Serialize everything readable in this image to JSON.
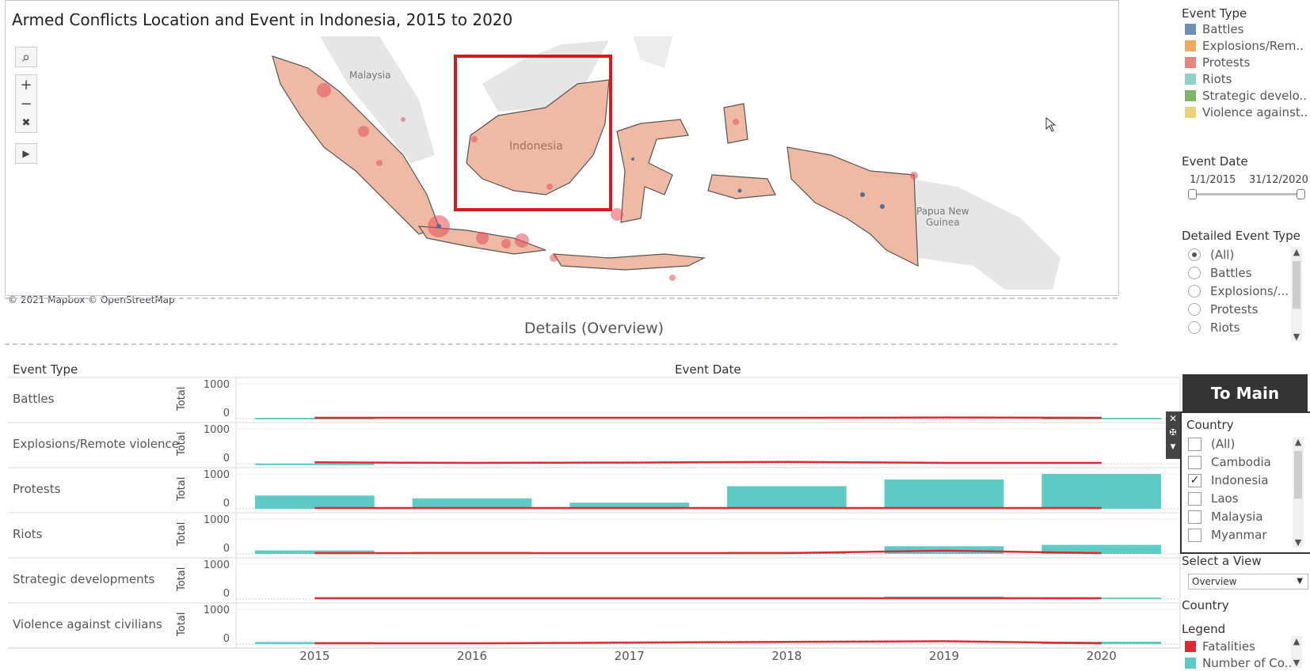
{
  "map": {
    "title": "Armed Conflicts Location and Event in Indonesia, 2015 to 2020",
    "labels": {
      "malaysia": "Malaysia",
      "indonesia": "Indonesia",
      "png": "Papua New Guinea"
    },
    "attribution": "© 2021 Mapbox © OpenStreetMap",
    "controls": [
      "search-icon",
      "zoom-in-icon",
      "zoom-out-icon",
      "pin-reset-icon",
      "play-icon"
    ]
  },
  "details": {
    "title": "Details (Overview)"
  },
  "chart_headers": {
    "event_type": "Event Type",
    "event_date": "Event Date"
  },
  "chart_data": {
    "type": "bar",
    "x": [
      "2015",
      "2016",
      "2017",
      "2018",
      "2019",
      "2020"
    ],
    "ylim": [
      0,
      1000
    ],
    "yticks": [
      "1000",
      "0"
    ],
    "ylabel": "Total",
    "series": [
      {
        "name": "Battles",
        "bars": [
          22,
          0,
          0,
          0,
          0,
          22
        ],
        "fatalities": [
          0,
          0,
          0,
          0,
          10,
          0
        ]
      },
      {
        "name": "Explosions/Remote violence",
        "bars": [
          5,
          0,
          0,
          0,
          0,
          0
        ],
        "fatalities": [
          15,
          0,
          10,
          30,
          0,
          0
        ]
      },
      {
        "name": "Protests",
        "bars": [
          380,
          300,
          175,
          650,
          840,
          1000
        ],
        "fatalities": [
          0,
          0,
          0,
          0,
          0,
          0
        ]
      },
      {
        "name": "Riots",
        "bars": [
          100,
          60,
          0,
          60,
          220,
          260
        ],
        "fatalities": [
          0,
          0,
          0,
          0,
          70,
          0
        ]
      },
      {
        "name": "Strategic developments",
        "bars": [
          0,
          0,
          0,
          0,
          70,
          40
        ],
        "fatalities": [
          0,
          0,
          0,
          0,
          0,
          0
        ]
      },
      {
        "name": "Violence against civilians",
        "bars": [
          60,
          0,
          0,
          0,
          0,
          70
        ],
        "fatalities": [
          0,
          0,
          20,
          40,
          60,
          0
        ]
      }
    ]
  },
  "sidebar": {
    "event_type_title": "Event Type",
    "event_types": [
      {
        "label": "Battles",
        "color": "#6f8fb4"
      },
      {
        "label": "Explosions/Rem..",
        "color": "#f0a960"
      },
      {
        "label": "Protests",
        "color": "#e48582"
      },
      {
        "label": "Riots",
        "color": "#8fd0c8"
      },
      {
        "label": "Strategic develo..",
        "color": "#7fb56a"
      },
      {
        "label": "Violence against..",
        "color": "#ead27a"
      }
    ],
    "event_date_title": "Event Date",
    "date_start": "1/1/2015",
    "date_end": "31/12/2020",
    "detailed_title": "Detailed Event Type",
    "detailed_options": [
      "(All)",
      "Battles",
      "Explosions/...",
      "Protests",
      "Riots"
    ],
    "to_main_label": "To Main",
    "country_title": "Country",
    "country_options": [
      {
        "label": "(All)",
        "checked": false
      },
      {
        "label": "Cambodia",
        "checked": false
      },
      {
        "label": "Indonesia",
        "checked": true
      },
      {
        "label": "Laos",
        "checked": false
      },
      {
        "label": "Malaysia",
        "checked": false
      },
      {
        "label": "Myanmar",
        "checked": false
      }
    ],
    "select_view_title": "Select a View",
    "select_view_value": "Overview",
    "country_label": "Country",
    "legend_title": "Legend",
    "legend_items": [
      {
        "label": "Fatalities",
        "color": "#e02a33"
      },
      {
        "label": "Number of Co..",
        "color": "#5fcbc6"
      }
    ]
  }
}
